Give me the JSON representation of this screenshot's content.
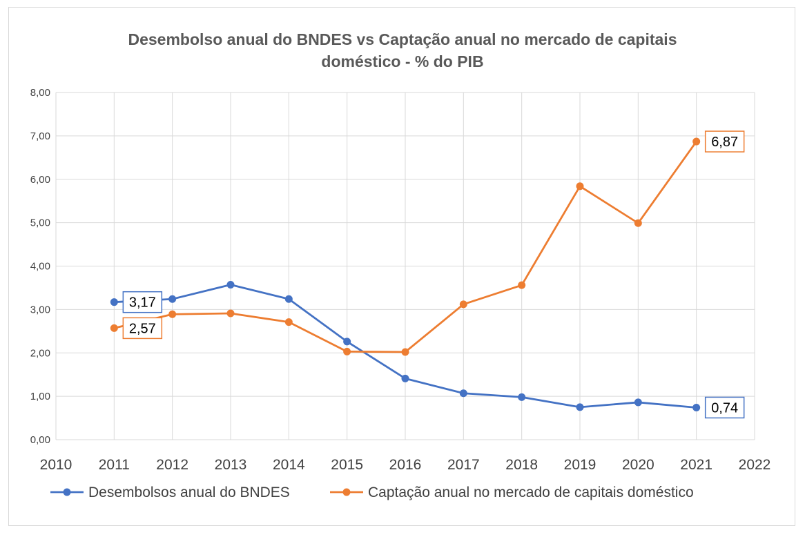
{
  "chart_data": {
    "type": "line",
    "title": "Desembolso anual do BNDES vs Captação anual no mercado de capitais doméstico - % do PIB",
    "title_lines": [
      "Desembolso anual do BNDES vs Captação anual no mercado de capitais",
      "doméstico - % do PIB"
    ],
    "xlabel": "",
    "ylabel": "",
    "xlim": [
      2010,
      2022
    ],
    "ylim": [
      0,
      8
    ],
    "x_ticks": [
      "2010",
      "2011",
      "2012",
      "2013",
      "2014",
      "2015",
      "2016",
      "2017",
      "2018",
      "2019",
      "2020",
      "2021",
      "2022"
    ],
    "y_ticks": [
      "0,00",
      "1,00",
      "2,00",
      "3,00",
      "4,00",
      "5,00",
      "6,00",
      "7,00",
      "8,00"
    ],
    "grid": true,
    "legend_position": "bottom",
    "x": [
      2011,
      2012,
      2013,
      2014,
      2015,
      2016,
      2017,
      2018,
      2019,
      2020,
      2021
    ],
    "series": [
      {
        "name": "Desembolsos anual do BNDES",
        "color": "#4472c4",
        "values": [
          3.17,
          3.24,
          3.57,
          3.24,
          2.26,
          1.41,
          1.07,
          0.98,
          0.75,
          0.86,
          0.74
        ],
        "data_labels": [
          {
            "index": 0,
            "text": "3,17"
          },
          {
            "index": 10,
            "text": "0,74"
          }
        ]
      },
      {
        "name": "Captação anual no mercado de capitais doméstico",
        "color": "#ed7d31",
        "values": [
          2.57,
          2.89,
          2.91,
          2.71,
          2.03,
          2.02,
          3.12,
          3.56,
          5.84,
          4.99,
          6.87
        ],
        "data_labels": [
          {
            "index": 0,
            "text": "2,57"
          },
          {
            "index": 10,
            "text": "6,87"
          }
        ]
      }
    ]
  }
}
